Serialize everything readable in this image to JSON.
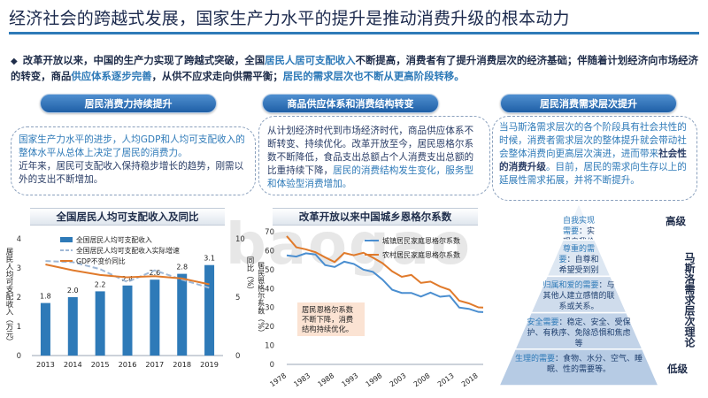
{
  "title": "经济社会的跨越式发展，国家生产力水平的提升是推动消费升级的根本动力",
  "intro": {
    "bullet": "◆",
    "p1": "改革开放以来，中国的生产力实现了跨越式突破，全国",
    "h1": "居民人居可支配收入",
    "p2": "不断提高，消费者有了提升消费层次的经济基础；伴随着计划经济向市场经济的转变，商品",
    "h2": "供应体系逐步完善",
    "p3": "，从供不应求走向供需平衡；",
    "h3": "居民的需求层次也不断从更高阶段转移。"
  },
  "pills": [
    "居民消费力持续提升",
    "商品供应体系和消费结构转变",
    "居民消费需求层次提升"
  ],
  "box1": {
    "a": "国家生产力水平的进步，人均GDP和人均可支配收入的整体水平从总体上决定了居民的消费力。",
    "b": "近年来，居民可支配收入保持稳步增长的趋势，刚需以外的支出不断增加。"
  },
  "box2": {
    "a": "从计划经济时代到市场经济时代，商品供应体系不断转变、持续优化。改革开放至今，居民恩格尔系数不断降低，食品支出总额占个人消费支出总额的比重持续下降，",
    "b": "居民的消费结构发生变化，服务型和体验型消费增加。"
  },
  "box3": {
    "a": "当马斯洛需求层次的各个阶段具有社会共性的时候，消费者需求层次的整体提升就会带动社会整体消费向更高层次演进，进而带来",
    "b": "社会性的消费升级",
    "c": "。目前，居民的需求向生存以上的延展性需求拓展，并将不断提升。"
  },
  "watermark": "baogao",
  "chart_data": [
    {
      "type": "bar",
      "title": "全国居民人均可支配收入及同比",
      "categories": [
        "2013",
        "2014",
        "2015",
        "2016",
        "2017",
        "2018",
        "2019"
      ],
      "ylabel_left": "居民人均可支配收入（万元）",
      "ylabel_right": "同比（%）",
      "ylim": [
        0,
        4
      ],
      "y2lim": [
        0,
        10
      ],
      "yticks": [
        "0",
        "1",
        "2",
        "3",
        "4"
      ],
      "y2ticks": [
        "0",
        "5",
        "10"
      ],
      "legend": [
        "全国居民人均可支配收入",
        "全国居民人均可支配收入实际增速",
        "GDP不变价同比"
      ],
      "series": [
        {
          "name": "全国居民人均可支配收入",
          "values": [
            1.8,
            2.0,
            2.2,
            2.4,
            2.6,
            2.8,
            3.1
          ],
          "color": "#2e7ab8",
          "labels": [
            "1.8",
            "2.0",
            "2.2",
            "2.4",
            "2.6",
            "2.8",
            "3.1"
          ]
        },
        {
          "name": "全国居民人均可支配收入实际增速",
          "values": [
            8.1,
            8.0,
            7.4,
            6.3,
            7.3,
            6.5,
            5.8
          ],
          "color": "#9fb8d6"
        },
        {
          "name": "GDP不变价同比",
          "values": [
            7.8,
            7.3,
            6.9,
            6.7,
            6.8,
            6.6,
            6.1
          ],
          "color": "#e07a2b"
        }
      ]
    },
    {
      "type": "line",
      "title": "改革开放以来中国城乡恩格尔系数",
      "ylabel": "居民恩格尔系数（%）",
      "ylim": [
        0,
        70
      ],
      "yticks": [
        "0",
        "10",
        "20",
        "30",
        "40",
        "50",
        "60",
        "70"
      ],
      "xticks": [
        "1978",
        "1983",
        "1988",
        "1993",
        "1998",
        "2003",
        "2008",
        "2013",
        "2018"
      ],
      "legend": [
        "城镇居民家庭恩格尔系数",
        "农村居民家庭恩格尔系数"
      ],
      "annotation": "居民恩格尔系数不断下降，消费结构持续优化。",
      "series": [
        {
          "name": "城镇居民家庭恩格尔系数",
          "color": "#4a8ed0",
          "x": [
            1978,
            1980,
            1982,
            1984,
            1986,
            1988,
            1990,
            1992,
            1994,
            1996,
            1998,
            2000,
            2002,
            2004,
            2006,
            2008,
            2010,
            2012,
            2014,
            2016,
            2018,
            2019
          ],
          "values": [
            57.5,
            56.9,
            58.6,
            58.0,
            52.4,
            51.4,
            54.2,
            53.0,
            50.0,
            48.8,
            44.7,
            39.4,
            37.7,
            37.7,
            35.8,
            37.9,
            35.7,
            36.2,
            30.0,
            29.3,
            27.7,
            27.6
          ]
        },
        {
          "name": "农村居民家庭恩格尔系数",
          "color": "#e07a2b",
          "x": [
            1978,
            1980,
            1982,
            1984,
            1986,
            1988,
            1990,
            1992,
            1994,
            1996,
            1998,
            2000,
            2002,
            2004,
            2006,
            2008,
            2010,
            2012,
            2014,
            2016,
            2018,
            2019
          ],
          "values": [
            67.7,
            61.8,
            60.7,
            59.2,
            56.5,
            54.0,
            58.8,
            57.6,
            58.9,
            56.3,
            53.4,
            49.1,
            46.2,
            47.2,
            43.0,
            43.7,
            41.1,
            39.3,
            33.6,
            32.2,
            30.1,
            30.0
          ]
        }
      ]
    },
    {
      "type": "pyramid",
      "axis_high": "高级",
      "axis_low": "低级",
      "axis_title": "马斯洛需求层次理论",
      "levels": [
        {
          "name": "自我实现需要",
          "desc": "：实现自我价值和潜能，成为全面发展的人。",
          "color": "#eef3f9"
        },
        {
          "name": "尊重的需要",
          "desc": "：自尊和希望受到别人的尊重",
          "color": "#dde7f2"
        },
        {
          "name": "归属和爱的需要",
          "desc": "：与其他人建立感情的联系或关系。",
          "color": "#cfdcec"
        },
        {
          "name": "安全需要",
          "desc": "：稳定、安全、受保护、有秩序、免除恐惧和焦虑等",
          "color": "#c2d3e8"
        },
        {
          "name": "生理的需要",
          "desc": "：食物、水分、空气、睡眠、性的需要等。",
          "color": "#b6cbe4"
        }
      ]
    }
  ]
}
